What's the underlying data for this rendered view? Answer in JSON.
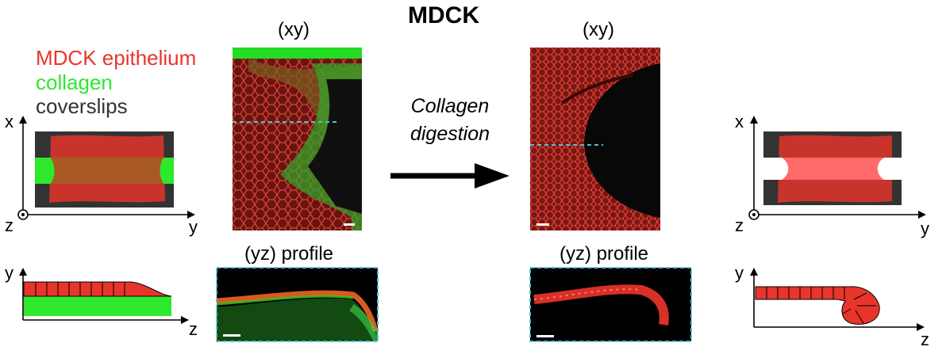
{
  "title": "MDCK",
  "legend": {
    "epithelium": "MDCK epithelium",
    "collagen": "collagen",
    "coverslips": "coverslips"
  },
  "panels": {
    "xy_before": "(xy)",
    "xy_after": "(xy)",
    "yz_before": "(yz) profile",
    "yz_after": "(yz) profile"
  },
  "arrow": {
    "line1": "Collagen",
    "line2": "digestion"
  },
  "axes": {
    "x": "x",
    "y": "y",
    "z": "z"
  },
  "colors": {
    "epithelium": "#e8352c",
    "epithelium_dark": "#c8342c",
    "collagen": "#2ee82e",
    "coverslip": "#333333",
    "overlap": "#a85a22",
    "digested": "#ff6b6b",
    "dash": "#4fc3d6"
  },
  "icons": [
    "out-of-plane-z-icon",
    "right-arrow-icon",
    "axis-arrow-icon"
  ]
}
